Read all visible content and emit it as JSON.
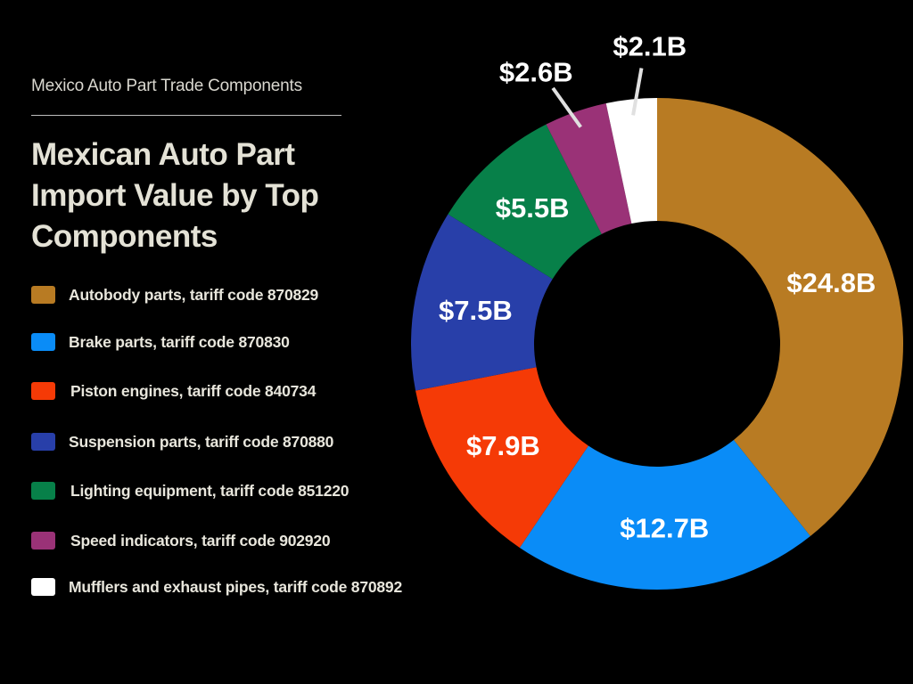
{
  "header": {
    "subtitle": "Mexico Auto Part Trade Components",
    "title": "Mexican Auto Part Import Value by Top Components"
  },
  "chart_data": {
    "type": "pie",
    "variant": "donut",
    "title": "Mexican Auto Part Import Value by Top Components",
    "unit": "USD billions",
    "categories": [
      "Autobody parts, tariff code 870829",
      "Brake parts, tariff code 870830",
      "Piston engines, tariff code 840734",
      "Suspension parts, tariff code 870880",
      "Lighting equipment, tariff code 851220",
      "Speed indicators, tariff code 902920",
      "Mufflers and exhaust pipes, tariff code 870892"
    ],
    "values": [
      24.8,
      12.7,
      7.9,
      7.5,
      5.5,
      2.6,
      2.1
    ],
    "labels": [
      "$24.8B",
      "$12.7B",
      "$7.9B",
      "$7.5B",
      "$5.5B",
      "$2.6B",
      "$2.1B"
    ],
    "colors": [
      "#b87b23",
      "#0a8cf7",
      "#f53a06",
      "#283fa9",
      "#078049",
      "#9a3277",
      "#ffffff"
    ],
    "legend_position": "left",
    "start_angle": "top, clockwise"
  }
}
